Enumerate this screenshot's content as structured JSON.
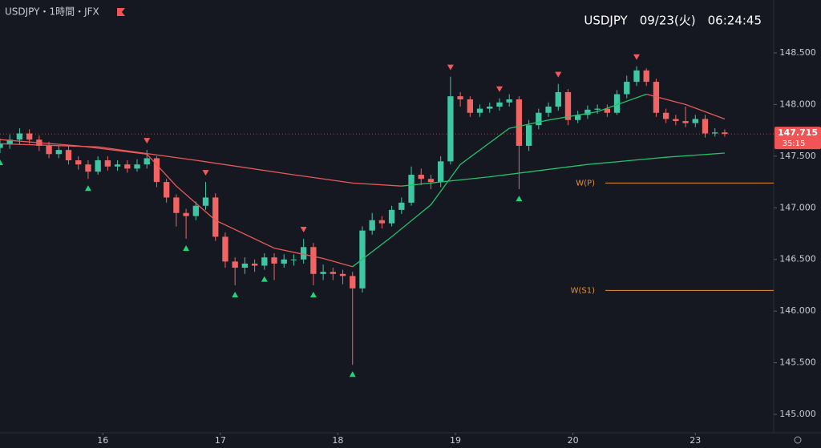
{
  "chart_data": {
    "type": "candlestick",
    "title": "USDJPY・1時間・JFX",
    "clock": "USDJPY　09/23(火)　06:24:45",
    "up_color": "#3fc7a4",
    "down_color": "#f06464",
    "x": [
      0,
      2,
      4,
      6,
      8,
      10,
      12,
      14,
      16,
      18,
      20,
      22,
      24,
      26,
      28,
      30,
      32,
      34,
      36,
      38,
      40,
      42,
      44,
      46,
      48,
      50,
      52,
      54,
      56,
      58,
      60,
      62,
      64,
      66,
      68,
      70,
      72,
      74,
      76,
      78,
      80,
      82,
      84,
      86,
      88,
      90,
      92,
      94,
      96,
      98,
      100,
      102,
      104,
      106,
      108,
      110,
      112,
      114,
      116,
      118,
      120,
      122,
      124,
      126,
      128,
      130,
      132,
      134,
      136,
      138,
      140,
      142,
      144,
      146,
      148
    ],
    "open": [
      147.58,
      147.62,
      147.66,
      147.72,
      147.66,
      147.6,
      147.52,
      147.56,
      147.46,
      147.42,
      147.35,
      147.46,
      147.4,
      147.42,
      147.38,
      147.42,
      147.48,
      147.25,
      147.1,
      146.95,
      146.92,
      147.02,
      147.1,
      146.72,
      146.48,
      146.42,
      146.46,
      146.44,
      146.52,
      146.46,
      146.5,
      146.5,
      146.62,
      146.36,
      146.38,
      146.36,
      146.34,
      146.22,
      146.78,
      146.88,
      146.85,
      146.98,
      147.05,
      147.32,
      147.28,
      147.25,
      147.45,
      148.08,
      148.05,
      147.92,
      147.96,
      147.98,
      148.02,
      148.05,
      147.6,
      147.8,
      147.92,
      147.98,
      148.12,
      147.85,
      147.9,
      147.95,
      147.96,
      147.92,
      148.1,
      148.22,
      148.33,
      148.22,
      147.92,
      147.86,
      147.84,
      147.82,
      147.86,
      147.72,
      147.73
    ],
    "high": [
      147.67,
      147.71,
      147.77,
      147.76,
      147.7,
      147.64,
      147.6,
      147.6,
      147.5,
      147.46,
      147.5,
      147.5,
      147.46,
      147.46,
      147.47,
      147.56,
      147.5,
      147.28,
      147.13,
      146.99,
      147.06,
      147.25,
      147.14,
      146.76,
      146.52,
      146.52,
      146.5,
      146.56,
      146.56,
      146.55,
      146.55,
      146.7,
      146.66,
      146.45,
      146.42,
      146.4,
      146.38,
      146.82,
      146.95,
      146.92,
      147.02,
      147.1,
      147.4,
      147.38,
      147.32,
      147.5,
      148.27,
      148.12,
      148.08,
      148.0,
      148.02,
      148.06,
      148.1,
      148.08,
      147.85,
      147.96,
      148.02,
      148.2,
      148.15,
      147.94,
      147.99,
      148.0,
      148.0,
      148.14,
      148.28,
      148.37,
      148.35,
      148.25,
      147.96,
      147.9,
      147.98,
      147.9,
      147.9,
      147.77,
      147.76
    ],
    "low": [
      147.53,
      147.57,
      147.61,
      147.62,
      147.55,
      147.48,
      147.48,
      147.42,
      147.37,
      147.28,
      147.32,
      147.36,
      147.36,
      147.34,
      147.35,
      147.38,
      147.2,
      147.05,
      146.82,
      146.7,
      146.88,
      146.98,
      146.68,
      146.42,
      146.25,
      146.36,
      146.38,
      146.4,
      146.3,
      146.42,
      146.44,
      146.46,
      146.25,
      146.3,
      146.3,
      146.26,
      145.48,
      146.18,
      146.74,
      146.8,
      146.82,
      146.94,
      147.02,
      147.22,
      147.18,
      147.2,
      147.42,
      147.98,
      147.88,
      147.88,
      147.92,
      147.94,
      147.98,
      147.18,
      147.55,
      147.76,
      147.88,
      147.94,
      147.8,
      147.82,
      147.86,
      147.91,
      147.88,
      147.9,
      148.06,
      148.18,
      148.18,
      147.88,
      147.82,
      147.8,
      147.78,
      147.78,
      147.68,
      147.69,
      147.69
    ],
    "close": [
      147.62,
      147.66,
      147.72,
      147.66,
      147.6,
      147.52,
      147.56,
      147.46,
      147.42,
      147.35,
      147.46,
      147.4,
      147.42,
      147.38,
      147.42,
      147.48,
      147.25,
      147.1,
      146.95,
      146.92,
      147.02,
      147.1,
      146.72,
      146.48,
      146.42,
      146.46,
      146.44,
      146.52,
      146.46,
      146.5,
      146.5,
      146.62,
      146.36,
      146.38,
      146.36,
      146.34,
      146.22,
      146.78,
      146.88,
      146.85,
      146.98,
      147.05,
      147.32,
      147.28,
      147.25,
      147.45,
      148.08,
      148.05,
      147.92,
      147.96,
      147.98,
      148.02,
      148.05,
      147.6,
      147.8,
      147.92,
      147.98,
      148.12,
      147.85,
      147.9,
      147.95,
      147.96,
      147.92,
      148.1,
      148.22,
      148.33,
      148.22,
      147.92,
      147.86,
      147.84,
      147.82,
      147.86,
      147.72,
      147.73,
      147.715
    ],
    "lines": [
      {
        "color": "#e85a5a",
        "x": [
          0,
          20,
          40,
          60,
          72,
          82
        ],
        "values": [
          147.62,
          147.59,
          147.46,
          147.32,
          147.24,
          147.21
        ]
      },
      {
        "color": "#22c06a",
        "x": [
          82,
          100,
          120,
          136,
          148
        ],
        "values": [
          147.21,
          147.3,
          147.42,
          147.49,
          147.53
        ]
      },
      {
        "color": "#e85a5a",
        "x": [
          0,
          16,
          30,
          36,
          44,
          56,
          66,
          72
        ],
        "values": [
          147.66,
          147.6,
          147.52,
          147.21,
          146.88,
          146.61,
          146.51,
          146.43
        ]
      },
      {
        "color": "#22c06a",
        "x": [
          72,
          80,
          88,
          94,
          104,
          112,
          122,
          132
        ],
        "values": [
          146.43,
          146.72,
          147.03,
          147.42,
          147.77,
          147.85,
          147.93,
          148.1
        ]
      },
      {
        "color": "#e85a5a",
        "x": [
          132,
          140,
          148
        ],
        "values": [
          148.1,
          148.0,
          147.86
        ]
      }
    ],
    "markers_up": [
      0,
      18,
      38,
      48,
      54,
      64,
      72,
      106
    ],
    "markers_down": [
      30,
      42,
      62,
      92,
      102,
      114,
      130
    ],
    "levels": [
      {
        "label": "W(P)",
        "value": 147.24,
        "color": "#e8912d"
      },
      {
        "label": "W(S1)",
        "value": 146.2,
        "color": "#e8912d"
      }
    ],
    "last": {
      "value": 147.715,
      "countdown": "35:15",
      "color": "#f05454"
    },
    "xlim": [
      0,
      158
    ],
    "xticks": [
      {
        "value": 21,
        "label": "16"
      },
      {
        "value": 45,
        "label": "17"
      },
      {
        "value": 69,
        "label": "18"
      },
      {
        "value": 93,
        "label": "19"
      },
      {
        "value": 117,
        "label": "20"
      },
      {
        "value": 142,
        "label": "23"
      }
    ],
    "ylim": [
      144.822,
      149.012
    ],
    "yticks": [
      {
        "value": 148.5,
        "label": "148.500"
      },
      {
        "value": 148,
        "label": "148.000"
      },
      {
        "value": 147.5,
        "label": "147.500"
      },
      {
        "value": 147,
        "label": "147.000"
      },
      {
        "value": 146.5,
        "label": "146.500"
      },
      {
        "value": 146,
        "label": "146.000"
      },
      {
        "value": 145.5,
        "label": "145.500"
      },
      {
        "value": 145,
        "label": "145.000"
      }
    ]
  }
}
